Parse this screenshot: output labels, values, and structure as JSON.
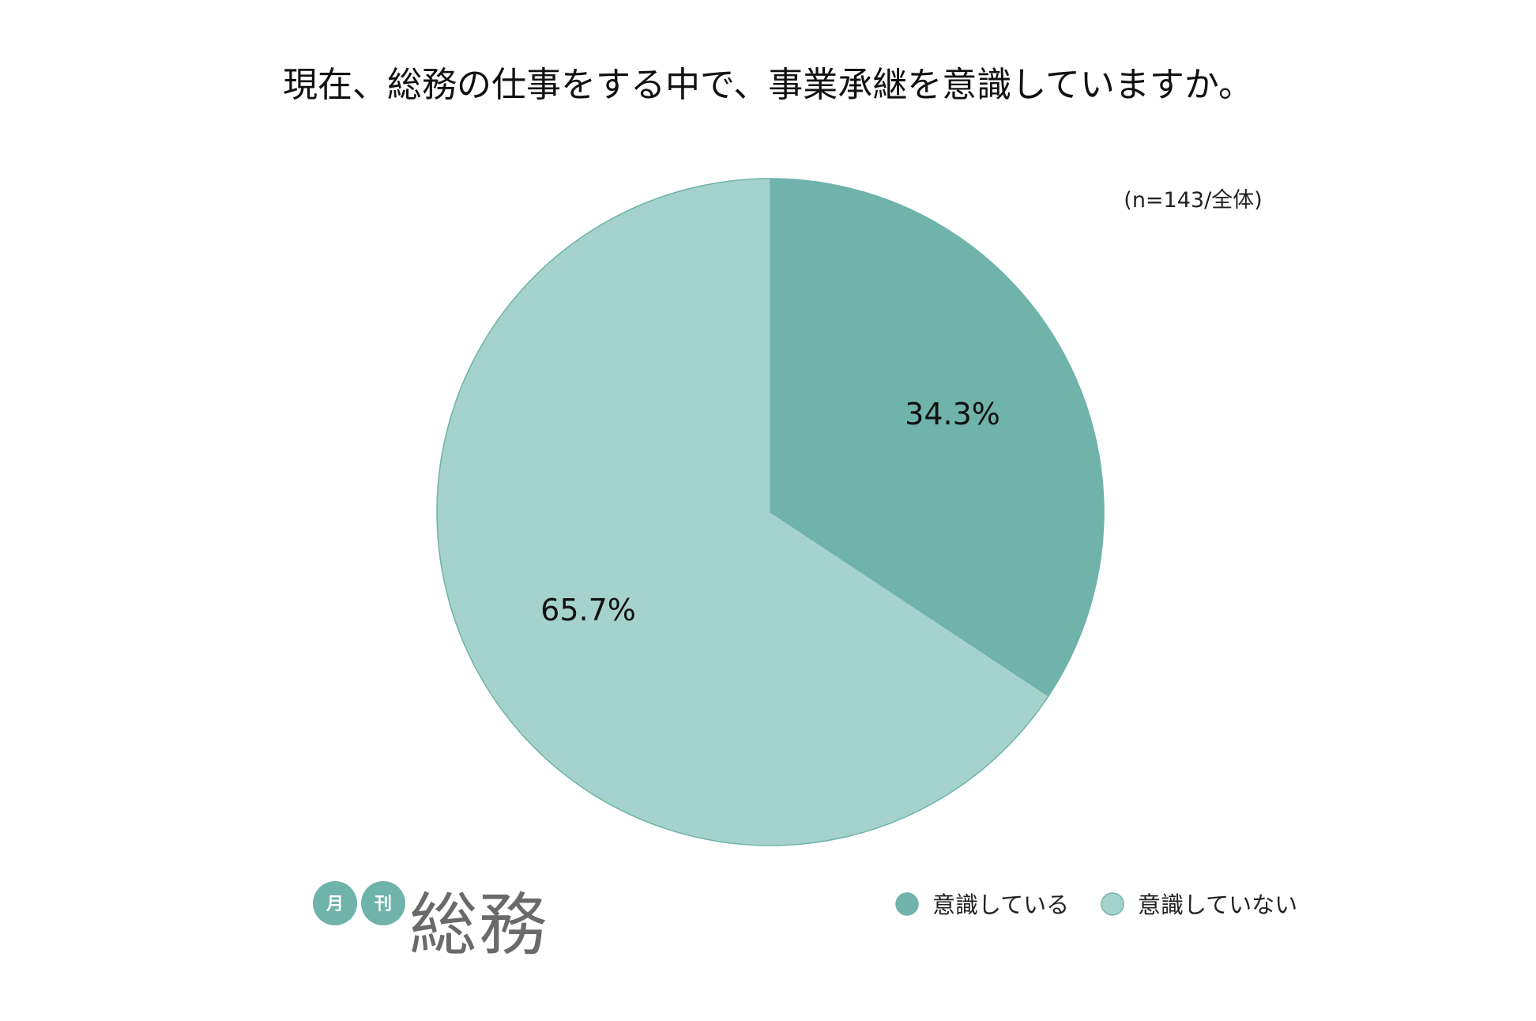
{
  "chart_data": {
    "type": "pie",
    "title": "現在、総務の仕事をする中で、事業承継を意識していますか。",
    "sample_note": "(n=143/全体)",
    "categories": [
      "意識している",
      "意識していない"
    ],
    "values": [
      34.3,
      65.7
    ],
    "labels": [
      "34.3%",
      "65.7%"
    ],
    "colors": [
      "#6fb3aa",
      "#a5d2cc"
    ],
    "start_angle": "12 o'clock",
    "direction": "clockwise",
    "legend_position": "bottom-right"
  },
  "logo": {
    "small_chars": [
      "月",
      "刊"
    ],
    "main_text": "総務",
    "badge_color": "#6fb3aa",
    "text_color": "#6a6a6a"
  }
}
